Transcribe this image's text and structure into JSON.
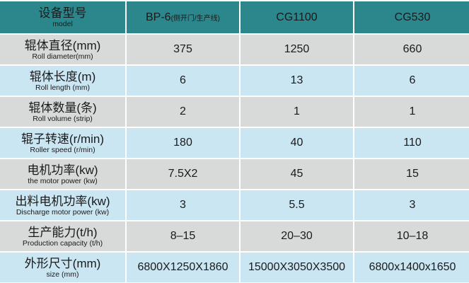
{
  "header": {
    "label": "设备型号",
    "label_en": "model",
    "columns": [
      {
        "text": "BP-6",
        "note": "(侧开门/生产线)"
      },
      {
        "text": "CG1100"
      },
      {
        "text": "CG530"
      }
    ]
  },
  "rows": [
    {
      "label": "辊体直径(mm)",
      "label_en": "Roll diameter(mm)",
      "values": [
        "375",
        "1250",
        "660"
      ]
    },
    {
      "label": "辊体长度(m)",
      "label_en": "Roll length (mm)",
      "values": [
        "6",
        "13",
        "6"
      ]
    },
    {
      "label": "辊体数量(条)",
      "label_en": "Roll volume (strip)",
      "values": [
        "2",
        "1",
        "1"
      ]
    },
    {
      "label": "辊子转速(r/min)",
      "label_en": "Roller speed (r/min)",
      "values": [
        "180",
        "40",
        "110"
      ]
    },
    {
      "label": "电机功率(kw)",
      "label_en": "the motor power (kw)",
      "values": [
        "7.5X2",
        "45",
        "15"
      ]
    },
    {
      "label": "出料电机功率(kw)",
      "label_en": "Discharge motor power (kw)",
      "values": [
        "3",
        "5.5",
        "3"
      ]
    },
    {
      "label": "生产能力(t/h)",
      "label_en": "Production capacity (t/h)",
      "values": [
        "8–15",
        "20–30",
        "10–18"
      ]
    },
    {
      "label": "外形尺寸(mm)",
      "label_en": "size (mm)",
      "values": [
        "6800X1250X1860",
        "15000X3050X3500",
        "6800x1400x1650"
      ]
    }
  ]
}
